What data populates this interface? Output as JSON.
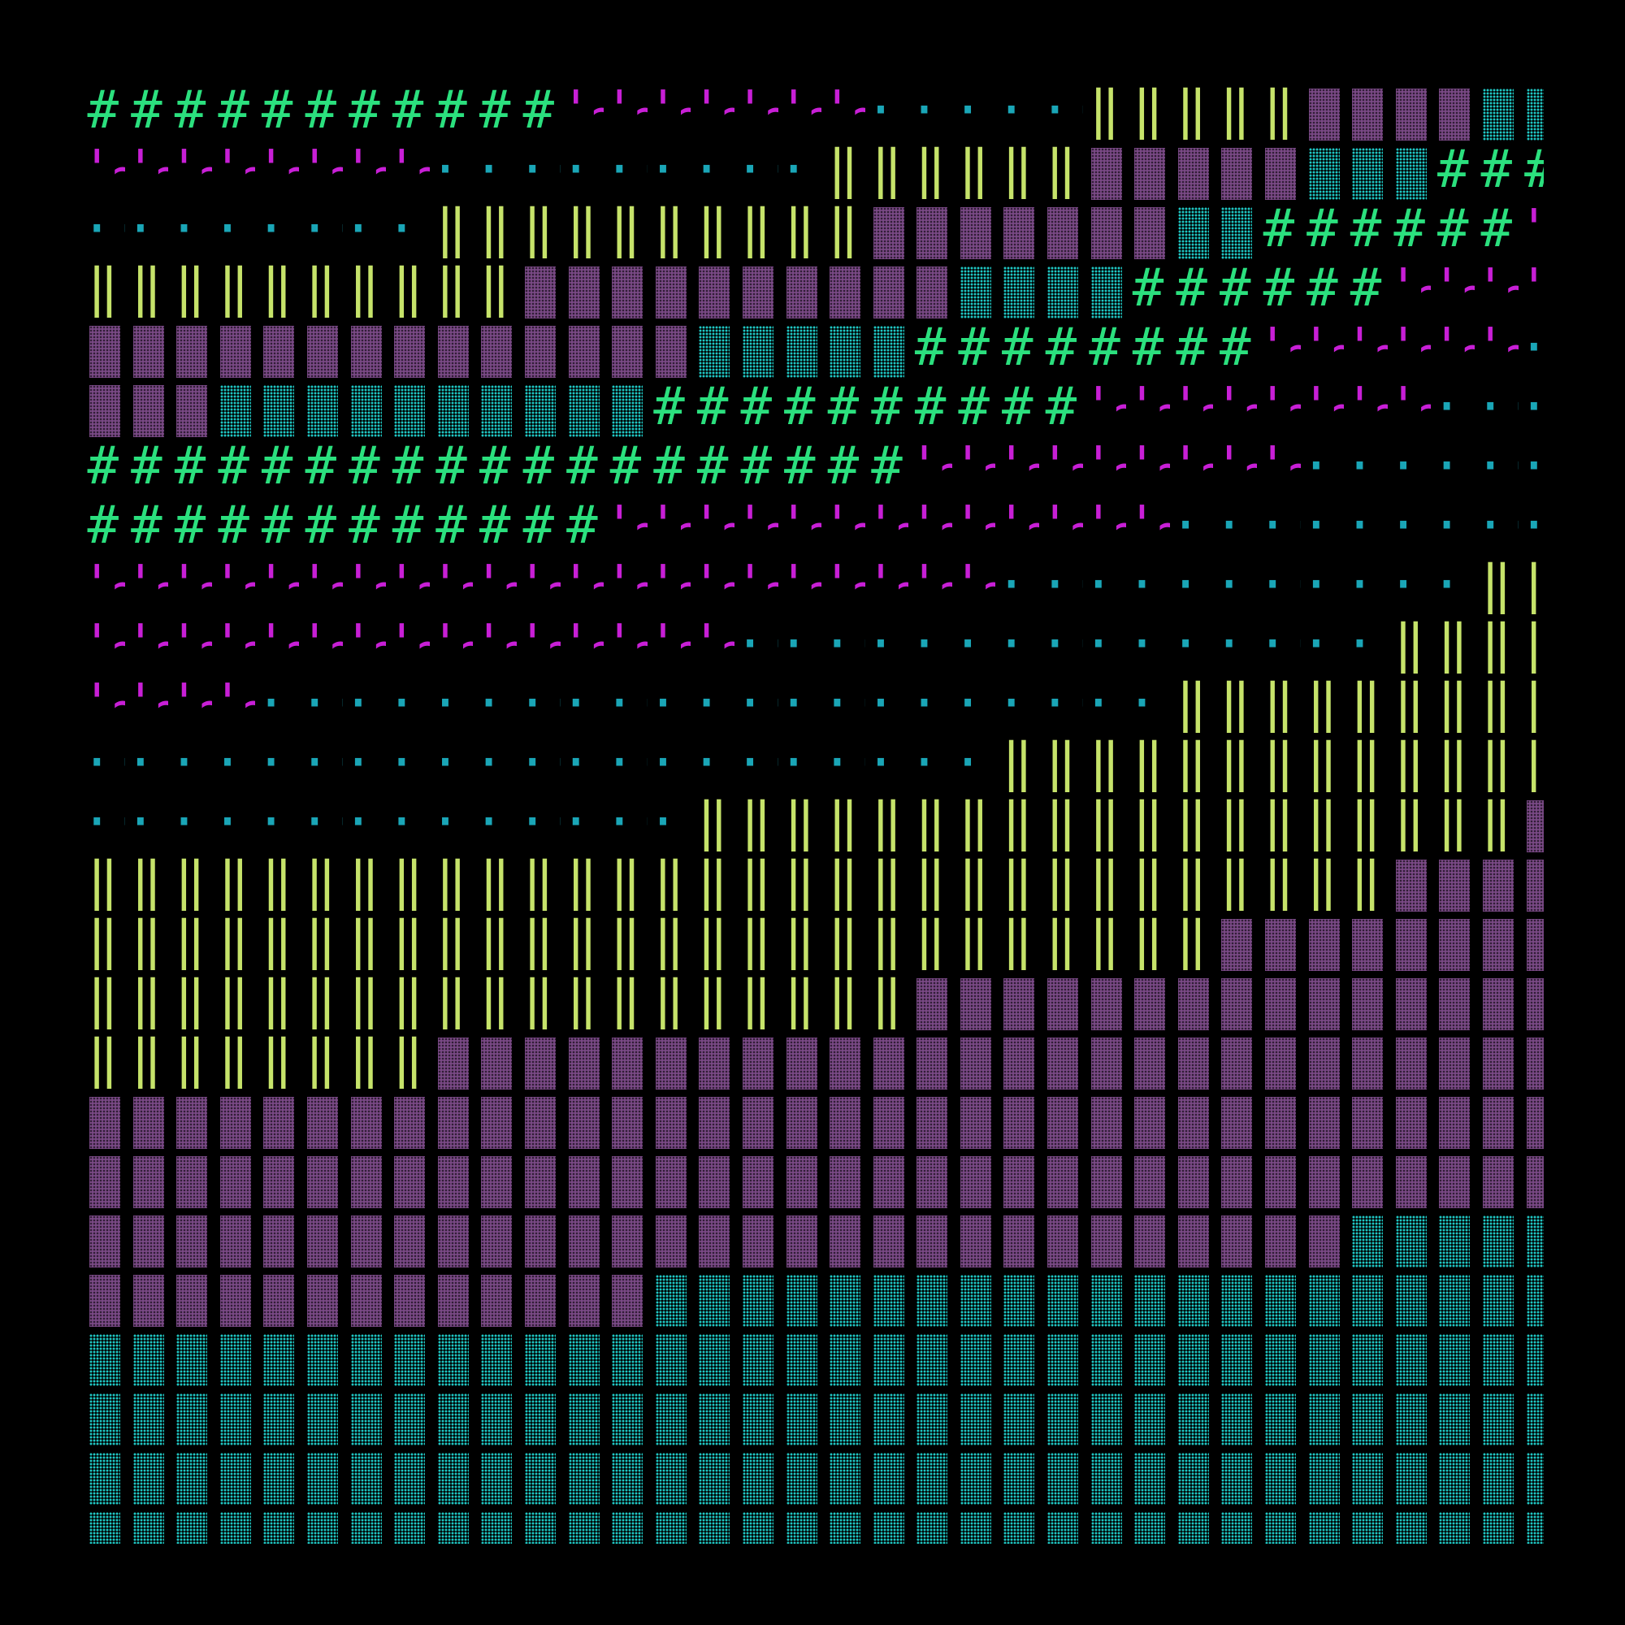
{
  "colors": {
    "background": "#000000",
    "hash": "#2be07e",
    "wave": "#c81fd6",
    "dots": "#1aa6b7",
    "bars": "#c6e36a",
    "block": "#7a4a86",
    "stipple": "#1fc7c4"
  },
  "glyphs": {
    "hash": "#",
    "wave": "'~",
    "dots": "··",
    "bars": "‖"
  },
  "rows": [
    {
      "hash": 11,
      "wave": 7,
      "dots": 5,
      "bars": 5,
      "block": 4,
      "stipple": 2
    },
    {
      "wave": 8,
      "dots": 9,
      "bars": 6,
      "block": 5,
      "stipple": 3,
      "hash": 3
    },
    {
      "dots": 8,
      "bars": 10,
      "block": 7,
      "stipple": 2,
      "hash": 6,
      "wave": 1
    },
    {
      "bars": 10,
      "block": 10,
      "stipple": 4,
      "hash": 6,
      "wave": 4
    },
    {
      "block": 14,
      "stipple": 5,
      "hash": 8,
      "wave": 6,
      "dots": 1
    },
    {
      "block": 3,
      "stipple": 10,
      "hash": 10,
      "wave": 8,
      "dots": 3
    },
    {
      "hash": 19,
      "wave": 9,
      "dots": 6
    },
    {
      "hash": 12,
      "wave": 13,
      "dots": 9
    },
    {
      "wave": 21,
      "dots": 11,
      "bars": 2
    },
    {
      "wave": 15,
      "dots": 15,
      "bars": 4
    },
    {
      "wave": 4,
      "dots": 21,
      "bars": 9
    },
    {
      "dots": 21,
      "bars": 13
    },
    {
      "dots": 14,
      "bars": 19,
      "block": 1
    },
    {
      "bars": 30,
      "block": 4
    },
    {
      "bars": 26,
      "block": 8
    },
    {
      "bars": 19,
      "block": 15
    },
    {
      "bars": 8,
      "block": 26
    },
    {
      "block": 34
    },
    {
      "block": 34
    },
    {
      "block": 29,
      "stipple": 5
    },
    {
      "block": 13,
      "stipple": 21
    },
    {
      "stipple": 34
    },
    {
      "stipple": 34
    },
    {
      "stipple": 34
    },
    {
      "stipple": 34
    }
  ]
}
